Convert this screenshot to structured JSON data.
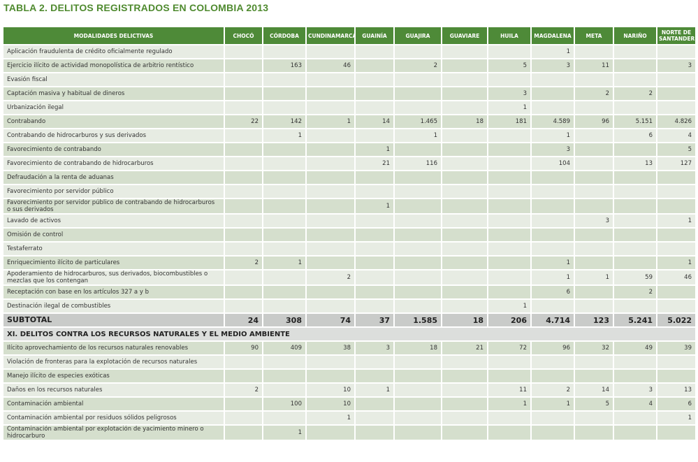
{
  "title": "TABLA 2. DELITOS REGISTRADOS EN COLOMBIA 2013",
  "table": {
    "header": [
      "MODALIDADES DELICTIVAS",
      "CHOCÓ",
      "CÓRDOBA",
      "CUNDINAMARCA",
      "GUAINÍA",
      "GUAJIRA",
      "GUAVIARE",
      "HUILA",
      "MAGDALENA",
      "META",
      "NARIÑO",
      "NORTE DE SANTANDER"
    ],
    "sections": [
      {
        "rows": [
          [
            "Aplicación fraudulenta de crédito oficialmente regulado",
            null,
            null,
            null,
            null,
            null,
            null,
            null,
            "1",
            null,
            null,
            null
          ],
          [
            "Ejercicio ilícito de actividad monopolística de arbitrio rentístico",
            null,
            "163",
            "46",
            null,
            "2",
            null,
            "5",
            "3",
            "11",
            null,
            "3"
          ],
          [
            "Evasión fiscal",
            null,
            null,
            null,
            null,
            null,
            null,
            null,
            null,
            null,
            null,
            null
          ],
          [
            "Captación masiva y habitual de dineros",
            null,
            null,
            null,
            null,
            null,
            null,
            "3",
            null,
            "2",
            "2",
            null
          ],
          [
            "Urbanización ilegal",
            null,
            null,
            null,
            null,
            null,
            null,
            "1",
            null,
            null,
            null,
            null
          ],
          [
            "Contrabando",
            "22",
            "142",
            "1",
            "14",
            "1.465",
            "18",
            "181",
            "4.589",
            "96",
            "5.151",
            "4.826"
          ],
          [
            "Contrabando de hidrocarburos y sus derivados",
            null,
            "1",
            null,
            null,
            "1",
            null,
            null,
            "1",
            null,
            "6",
            "4"
          ],
          [
            "Favorecimiento de contrabando",
            null,
            null,
            null,
            "1",
            null,
            null,
            null,
            "3",
            null,
            null,
            "5"
          ],
          [
            "Favorecimiento de contrabando de hidrocarburos",
            null,
            null,
            null,
            "21",
            "116",
            null,
            null,
            "104",
            null,
            "13",
            "127"
          ],
          [
            "Defraudación a la renta de aduanas",
            null,
            null,
            null,
            null,
            null,
            null,
            null,
            null,
            null,
            null,
            null
          ],
          [
            "Favorecimiento por servidor público",
            null,
            null,
            null,
            null,
            null,
            null,
            null,
            null,
            null,
            null,
            null
          ],
          [
            "Favorecimiento por servidor público de contrabando de hidrocarburos o sus derivados",
            null,
            null,
            null,
            "1",
            null,
            null,
            null,
            null,
            null,
            null,
            null
          ],
          [
            "Lavado de activos",
            null,
            null,
            null,
            null,
            null,
            null,
            null,
            null,
            "3",
            null,
            "1"
          ],
          [
            "Omisión de control",
            null,
            null,
            null,
            null,
            null,
            null,
            null,
            null,
            null,
            null,
            null
          ],
          [
            "Testaferrato",
            null,
            null,
            null,
            null,
            null,
            null,
            null,
            null,
            null,
            null,
            null
          ],
          [
            "Enriquecimiento ilícito de particulares",
            "2",
            "1",
            null,
            null,
            null,
            null,
            null,
            "1",
            null,
            null,
            "1"
          ],
          [
            "Apoderamiento de hidrocarburos, sus derivados, biocombustibles o mezclas que los contengan",
            null,
            null,
            "2",
            null,
            null,
            null,
            null,
            "1",
            "1",
            "59",
            "46"
          ],
          [
            "Receptación con base en los artículos 327 a y b",
            null,
            null,
            null,
            null,
            null,
            null,
            null,
            "6",
            null,
            "2",
            null
          ],
          [
            "Destinación ilegal de combustibles",
            null,
            null,
            null,
            null,
            null,
            null,
            "1",
            null,
            null,
            null,
            null
          ]
        ],
        "subtotal": [
          "SUBTOTAL",
          "24",
          "308",
          "74",
          "37",
          "1.585",
          "18",
          "206",
          "4.714",
          "123",
          "5.241",
          "5.022"
        ]
      },
      {
        "title": "XI. DELITOS CONTRA LOS RECURSOS NATURALES Y EL MEDIO AMBIENTE",
        "rows": [
          [
            "Ilícito aprovechamiento de los recursos naturales renovables",
            "90",
            "409",
            "38",
            "3",
            "18",
            "21",
            "72",
            "96",
            "32",
            "49",
            "39"
          ],
          [
            "Violación de fronteras para la explotación de recursos naturales",
            null,
            null,
            null,
            null,
            null,
            null,
            null,
            null,
            null,
            null,
            null
          ],
          [
            "Manejo ilícito de especies exóticas",
            null,
            null,
            null,
            null,
            null,
            null,
            null,
            null,
            null,
            null,
            null
          ],
          [
            "Daños en los recursos naturales",
            "2",
            null,
            "10",
            "1",
            null,
            null,
            "11",
            "2",
            "14",
            "3",
            "13"
          ],
          [
            "Contaminación ambiental",
            null,
            "100",
            "10",
            null,
            null,
            null,
            "1",
            "1",
            "5",
            "4",
            "6"
          ],
          [
            "Contaminación ambiental por residuos sólidos peligrosos",
            null,
            null,
            "1",
            null,
            null,
            null,
            null,
            null,
            null,
            null,
            "1"
          ],
          [
            "Contaminación ambiental por explotación de yacimiento minero o hidrocarburo",
            null,
            "1",
            null,
            null,
            null,
            null,
            null,
            null,
            null,
            null,
            null
          ]
        ]
      }
    ]
  }
}
